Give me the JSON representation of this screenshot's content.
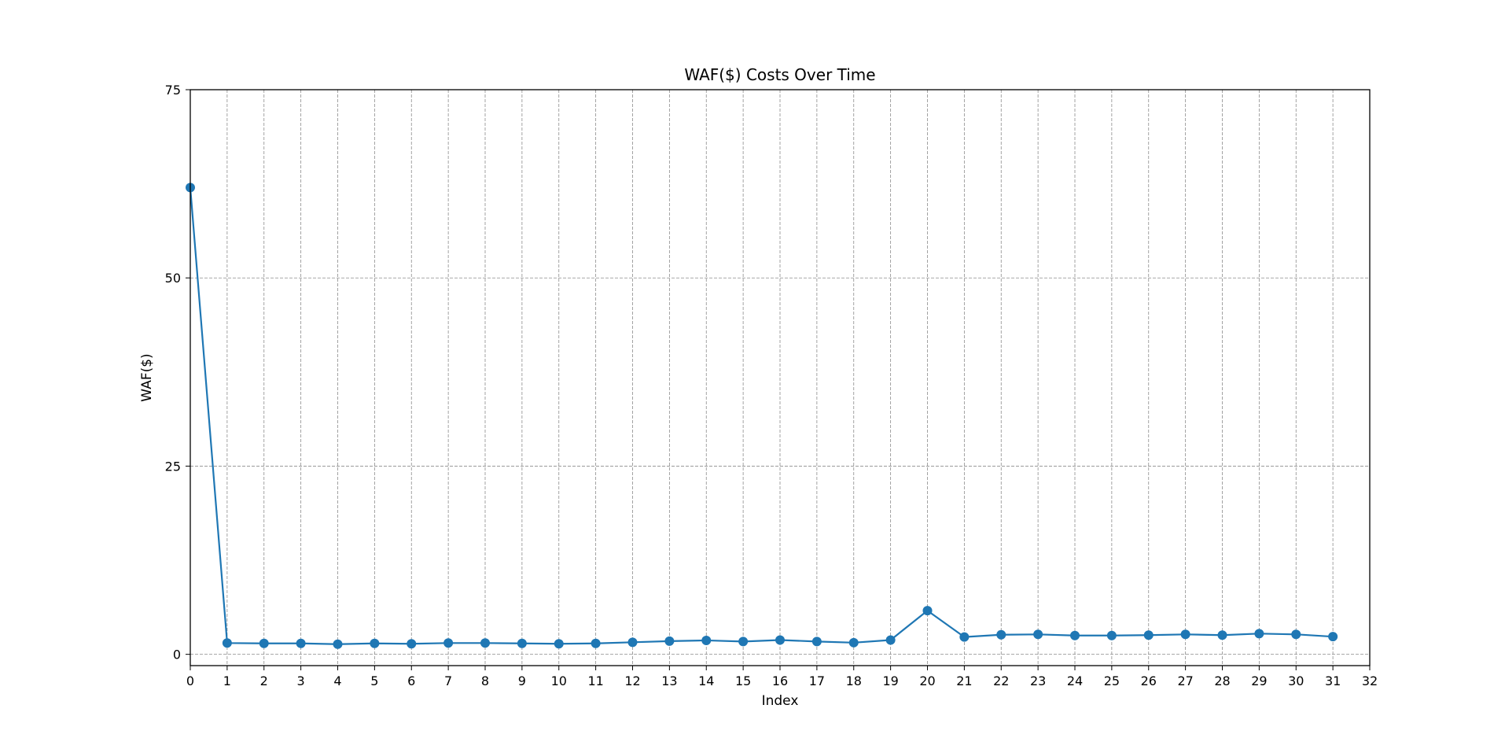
{
  "chart_data": {
    "type": "line",
    "title": "WAF($) Costs Over Time",
    "xlabel": "Index",
    "ylabel": "WAF($)",
    "xlim": [
      0,
      32
    ],
    "ylim": [
      -1.5,
      75
    ],
    "xticks": [
      0,
      1,
      2,
      3,
      4,
      5,
      6,
      7,
      8,
      9,
      10,
      11,
      12,
      13,
      14,
      15,
      16,
      17,
      18,
      19,
      20,
      21,
      22,
      23,
      24,
      25,
      26,
      27,
      28,
      29,
      30,
      31,
      32
    ],
    "yticks": [
      0,
      25,
      50,
      75
    ],
    "grid": true,
    "color": "#1f77b4",
    "marker": "circle",
    "x": [
      0,
      1,
      2,
      3,
      4,
      5,
      6,
      7,
      8,
      9,
      10,
      11,
      12,
      13,
      14,
      15,
      16,
      17,
      18,
      19,
      20,
      21,
      22,
      23,
      24,
      25,
      26,
      27,
      28,
      29,
      30,
      31
    ],
    "y": [
      62.0,
      1.5,
      1.45,
      1.45,
      1.35,
      1.45,
      1.4,
      1.5,
      1.5,
      1.45,
      1.4,
      1.45,
      1.6,
      1.75,
      1.85,
      1.7,
      1.9,
      1.7,
      1.55,
      1.9,
      5.8,
      2.3,
      2.6,
      2.65,
      2.5,
      2.5,
      2.55,
      2.65,
      2.55,
      2.75,
      2.65,
      2.35
    ]
  }
}
